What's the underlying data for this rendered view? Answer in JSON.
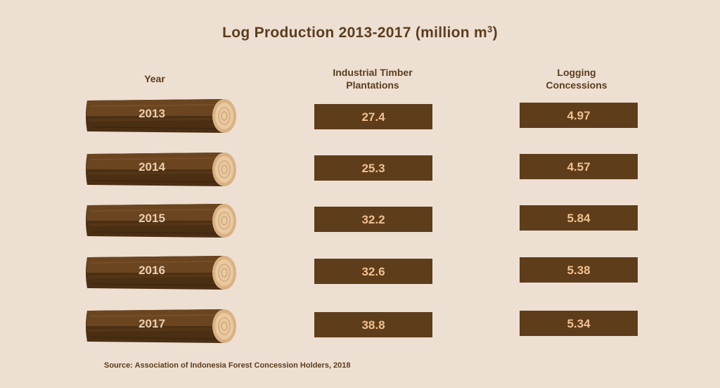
{
  "chart_data": {
    "type": "table",
    "title": "Log Production 2013-2017 (million m",
    "title_superscript": "3",
    "title_suffix": ")",
    "columns": [
      "Year",
      "Industrial Timber Plantations",
      "Logging Concessions"
    ],
    "rows": [
      {
        "year": "2013",
        "industrial_timber_plantations": "27.4",
        "logging_concessions": "4.97"
      },
      {
        "year": "2014",
        "industrial_timber_plantations": "25.3",
        "logging_concessions": "4.57"
      },
      {
        "year": "2015",
        "industrial_timber_plantations": "32.2",
        "logging_concessions": "5.84"
      },
      {
        "year": "2016",
        "industrial_timber_plantations": "32.6",
        "logging_concessions": "5.38"
      },
      {
        "year": "2017",
        "industrial_timber_plantations": "38.8",
        "logging_concessions": "5.34"
      }
    ],
    "source": "Source: Association of Indonesia Forest Concession Holders, 2018"
  },
  "headers": {
    "year": "Year",
    "itp_line1": "Industrial Timber",
    "itp_line2": "Plantations",
    "lc_line1": "Logging",
    "lc_line2": "Concessions"
  },
  "colors": {
    "background": "#eddfd2",
    "log_bark": "#5e3d1a",
    "value_box": "#5e3d1a",
    "value_text": "#f0c090",
    "title_text": "#5b3d1e"
  }
}
